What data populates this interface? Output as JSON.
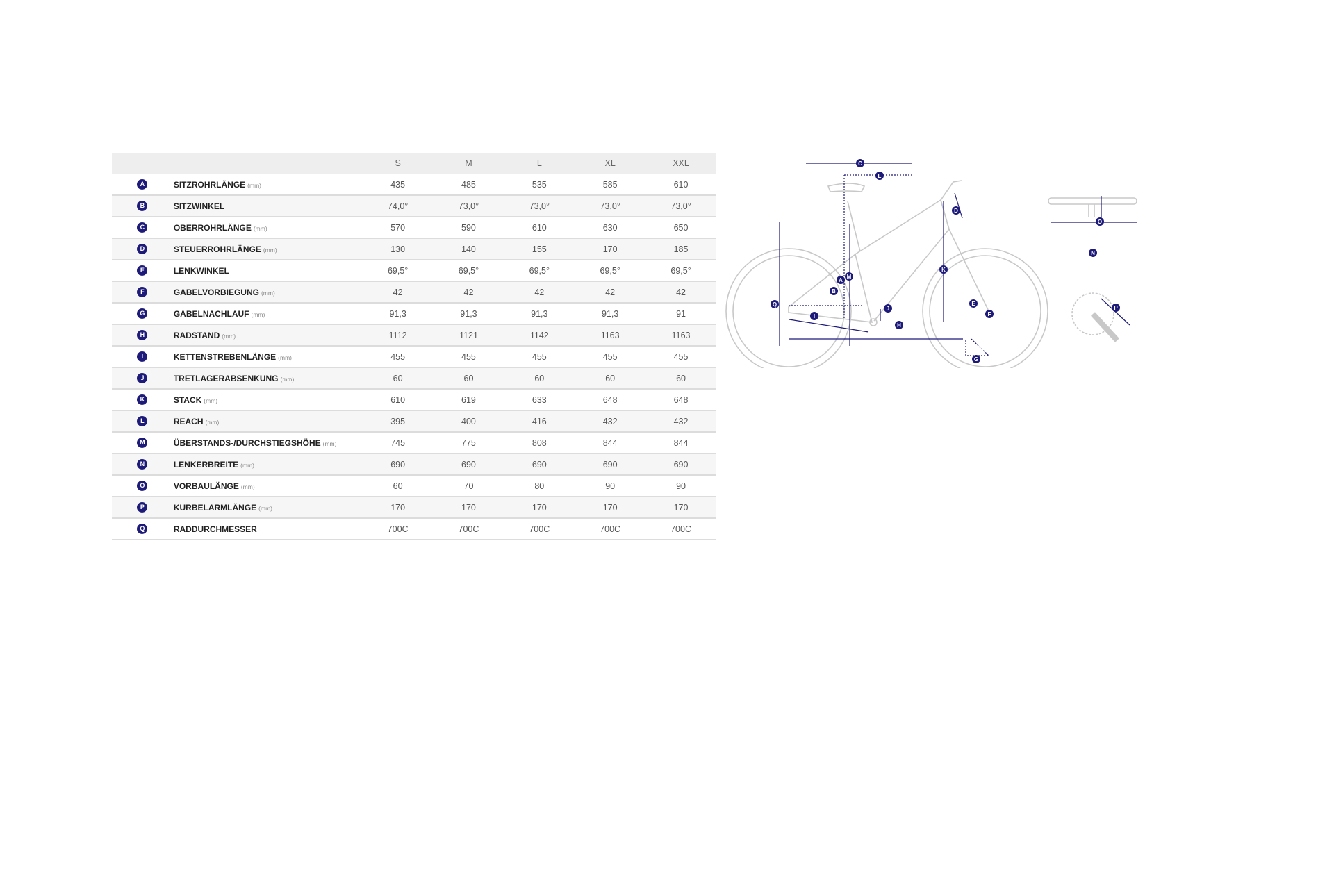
{
  "table": {
    "sizes": [
      "S",
      "M",
      "L",
      "XL",
      "XXL"
    ],
    "rows": [
      {
        "key": "A",
        "label": "SITZROHRLÄNGE",
        "unit": "(mm)",
        "values": [
          "435",
          "485",
          "535",
          "585",
          "610"
        ]
      },
      {
        "key": "B",
        "label": "SITZWINKEL",
        "unit": "",
        "values": [
          "74,0°",
          "73,0°",
          "73,0°",
          "73,0°",
          "73,0°"
        ]
      },
      {
        "key": "C",
        "label": "OBERROHRLÄNGE",
        "unit": "(mm)",
        "values": [
          "570",
          "590",
          "610",
          "630",
          "650"
        ]
      },
      {
        "key": "D",
        "label": "STEUERROHRLÄNGE",
        "unit": "(mm)",
        "values": [
          "130",
          "140",
          "155",
          "170",
          "185"
        ]
      },
      {
        "key": "E",
        "label": "LENKWINKEL",
        "unit": "",
        "values": [
          "69,5°",
          "69,5°",
          "69,5°",
          "69,5°",
          "69,5°"
        ]
      },
      {
        "key": "F",
        "label": "GABELVORBIEGUNG",
        "unit": "(mm)",
        "values": [
          "42",
          "42",
          "42",
          "42",
          "42"
        ]
      },
      {
        "key": "G",
        "label": "GABELNACHLAUF",
        "unit": "(mm)",
        "values": [
          "91,3",
          "91,3",
          "91,3",
          "91,3",
          "91"
        ]
      },
      {
        "key": "H",
        "label": "RADSTAND",
        "unit": "(mm)",
        "values": [
          "1112",
          "1121",
          "1142",
          "1163",
          "1163"
        ]
      },
      {
        "key": "I",
        "label": "KETTENSTREBENLÄNGE",
        "unit": "(mm)",
        "values": [
          "455",
          "455",
          "455",
          "455",
          "455"
        ]
      },
      {
        "key": "J",
        "label": "TRETLAGERABSENKUNG",
        "unit": "(mm)",
        "values": [
          "60",
          "60",
          "60",
          "60",
          "60"
        ]
      },
      {
        "key": "K",
        "label": "STACK",
        "unit": "(mm)",
        "values": [
          "610",
          "619",
          "633",
          "648",
          "648"
        ]
      },
      {
        "key": "L",
        "label": "REACH",
        "unit": "(mm)",
        "values": [
          "395",
          "400",
          "416",
          "432",
          "432"
        ]
      },
      {
        "key": "M",
        "label": "ÜBERSTANDS-/DURCHSTIEGSHÖHE",
        "unit": "(mm)",
        "values": [
          "745",
          "775",
          "808",
          "844",
          "844"
        ]
      },
      {
        "key": "N",
        "label": "LENKERBREITE",
        "unit": "(mm)",
        "values": [
          "690",
          "690",
          "690",
          "690",
          "690"
        ]
      },
      {
        "key": "O",
        "label": "VORBAULÄNGE",
        "unit": "(mm)",
        "values": [
          "60",
          "70",
          "80",
          "90",
          "90"
        ]
      },
      {
        "key": "P",
        "label": "KURBELARMLÄNGE",
        "unit": "(mm)",
        "values": [
          "170",
          "170",
          "170",
          "170",
          "170"
        ]
      },
      {
        "key": "Q",
        "label": "RADDURCHMESSER",
        "unit": "",
        "values": [
          "700C",
          "700C",
          "700C",
          "700C",
          "700C"
        ]
      }
    ]
  },
  "diagram": {
    "accent_color": "#1d1a7a",
    "line_color": "#c8c8c8",
    "labels": [
      "A",
      "B",
      "C",
      "D",
      "E",
      "F",
      "G",
      "H",
      "I",
      "J",
      "K",
      "L",
      "M",
      "N",
      "O",
      "P",
      "Q"
    ]
  }
}
